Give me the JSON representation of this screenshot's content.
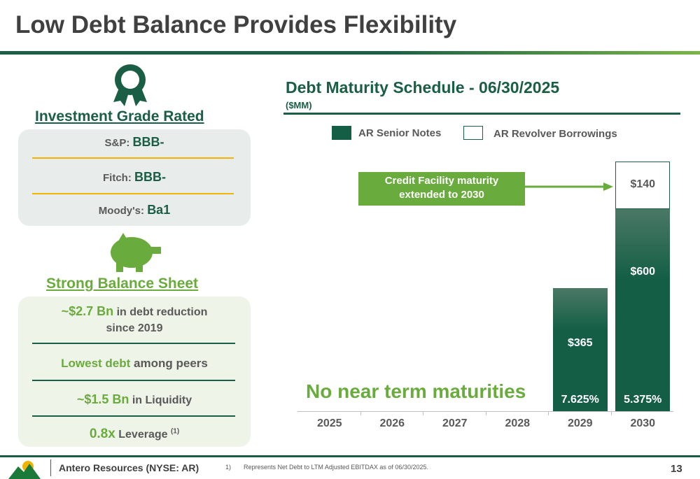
{
  "title": "Low Debt Balance Provides Flexibility",
  "left": {
    "ig_title": "Investment Grade Rated",
    "ratings": [
      {
        "agency": "S&P:",
        "rating": "BBB-"
      },
      {
        "agency": "Fitch:",
        "rating": "BBB-"
      },
      {
        "agency": "Moody's:",
        "rating": "Ba1"
      }
    ],
    "bs_title": "Strong Balance Sheet",
    "bs_items": [
      {
        "hl": "~$2.7 Bn",
        "rest": " in debt reduction",
        "line2": "since 2019"
      },
      {
        "hl": "Lowest debt",
        "rest": " among peers"
      },
      {
        "hl": "~$1.5 Bn",
        "rest": " in Liquidity"
      },
      {
        "hl": "0.8x",
        "rest": " Leverage ",
        "sup": "(1)"
      }
    ]
  },
  "chart_data": {
    "type": "bar",
    "title": "Debt Maturity Schedule - 06/30/2025",
    "subtitle": "($MM)",
    "categories": [
      "2025",
      "2026",
      "2027",
      "2028",
      "2029",
      "2030"
    ],
    "series": [
      {
        "name": "AR Senior Notes",
        "values": [
          0,
          0,
          0,
          0,
          365,
          600
        ],
        "labels": [
          "",
          "",
          "",
          "",
          "$365",
          "$600"
        ],
        "rates": [
          "",
          "",
          "",
          "",
          "7.625%",
          "5.375%"
        ],
        "color": "#135e45"
      },
      {
        "name": "AR Revolver Borrowings",
        "values": [
          0,
          0,
          0,
          0,
          0,
          140
        ],
        "labels": [
          "",
          "",
          "",
          "",
          "",
          "$140"
        ],
        "color": "#ffffff"
      }
    ],
    "ylim": [
      0,
      760
    ],
    "legend": "top",
    "annotations": [
      "Credit Facility maturity",
      "extended to 2030",
      "No near term maturities"
    ]
  },
  "footer": {
    "company": "Antero Resources (NYSE: AR)",
    "footnote_num": "1)",
    "footnote": "Represents Net Debt to LTM Adjusted EBITDAX as of 06/30/2025.",
    "page": "13"
  }
}
